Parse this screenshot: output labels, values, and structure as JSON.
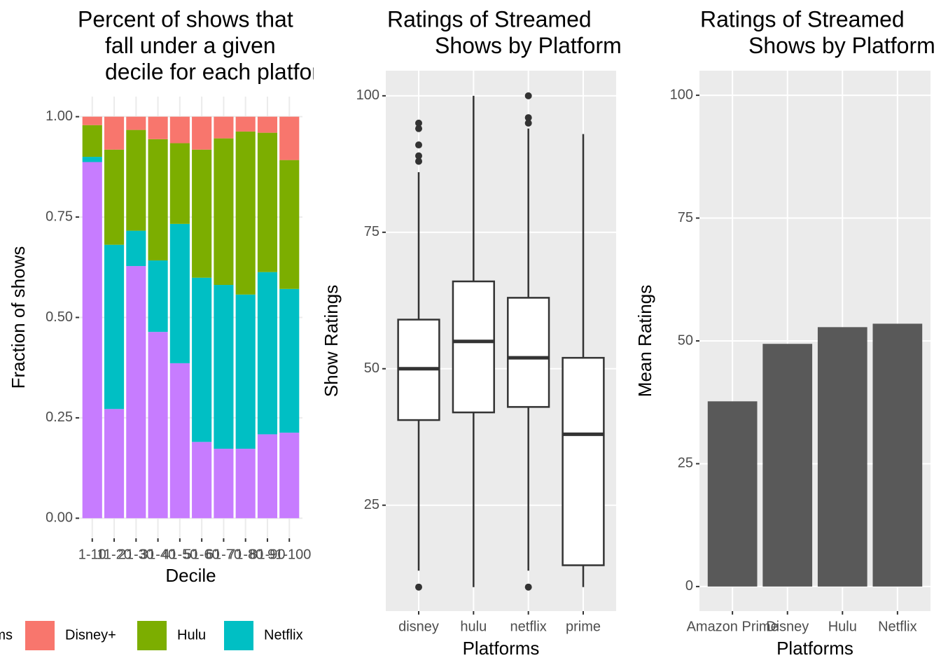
{
  "chart_data": [
    {
      "type": "stacked_bar",
      "title": [
        "Percent of shows that",
        "fall under a given",
        "decile for each platform"
      ],
      "xlabel": "Decile",
      "ylabel": "Fraction of shows",
      "categories": [
        "1-10",
        "11-20",
        "21-30",
        "31-40",
        "41-50",
        "51-60",
        "61-70",
        "71-80",
        "81-90",
        "91-100"
      ],
      "series": [
        {
          "name": null,
          "color": "#C77CFF",
          "values": [
            0.887,
            0.272,
            0.628,
            0.464,
            0.386,
            0.19,
            0.173,
            0.173,
            0.209,
            0.213
          ]
        },
        {
          "name": "Netflix",
          "color": "#00BFC4",
          "values": [
            0.013,
            0.409,
            0.088,
            0.178,
            0.347,
            0.409,
            0.408,
            0.384,
            0.404,
            0.358
          ]
        },
        {
          "name": "Hulu",
          "color": "#7CAE00",
          "values": [
            0.079,
            0.237,
            0.251,
            0.302,
            0.201,
            0.319,
            0.365,
            0.406,
            0.347,
            0.321
          ]
        },
        {
          "name": "Disney+",
          "color": "#F8766D",
          "values": [
            0.021,
            0.082,
            0.033,
            0.056,
            0.066,
            0.082,
            0.054,
            0.037,
            0.04,
            0.108
          ]
        }
      ],
      "legend_title": "Platforms",
      "legend": "bottom",
      "ylim": [
        -0.05,
        1.05
      ],
      "yticks": [
        {
          "value": 0,
          "label": "0.00"
        },
        {
          "value": 0.25,
          "label": "0.25"
        },
        {
          "value": 0.5,
          "label": "0.50"
        },
        {
          "value": 0.75,
          "label": "0.75"
        },
        {
          "value": 1,
          "label": "1.00"
        }
      ],
      "grid": true,
      "panel_background": "#FFFFFF",
      "grid_color": "#EBEBEB"
    },
    {
      "type": "box",
      "title": [
        "Ratings of Streamed",
        "Shows by Platform"
      ],
      "xlabel": "Platforms",
      "ylabel": "Show Ratings",
      "categories": [
        "disney",
        "hulu",
        "netflix",
        "prime"
      ],
      "boxes": [
        {
          "min": 13,
          "q1": 40.6,
          "median": 50,
          "q3": 59,
          "max": 86,
          "outliers": [
            10,
            88,
            89,
            91,
            94,
            95
          ]
        },
        {
          "min": 10,
          "q1": 42,
          "median": 55,
          "q3": 66,
          "max": 100,
          "outliers": []
        },
        {
          "min": 13,
          "q1": 43,
          "median": 52,
          "q3": 63,
          "max": 94,
          "outliers": [
            10,
            95,
            96,
            100
          ]
        },
        {
          "min": 10,
          "q1": 14,
          "median": 38,
          "q3": 52,
          "max": 93,
          "outliers": []
        }
      ],
      "color": "#333333",
      "box_fill": "#FFFFFF",
      "ylim": [
        5.6,
        104.6
      ],
      "yticks": [
        25,
        50,
        75,
        100
      ],
      "grid": true,
      "panel_background": "#EBEBEB",
      "grid_color": "#FFFFFF"
    },
    {
      "type": "bar",
      "title": [
        "Ratings of Streamed",
        "Shows by Platform"
      ],
      "xlabel": "Platforms",
      "ylabel": "Mean Ratings",
      "categories": [
        "Amazon Prime",
        "Disney",
        "Hulu",
        "Netflix"
      ],
      "values": [
        37.7,
        49.4,
        52.8,
        53.5
      ],
      "color": "#595959",
      "ylim": [
        -5,
        105
      ],
      "yticks": [
        0,
        25,
        50,
        75,
        100
      ],
      "grid": true,
      "panel_background": "#EBEBEB",
      "grid_color": "#FFFFFF"
    }
  ]
}
